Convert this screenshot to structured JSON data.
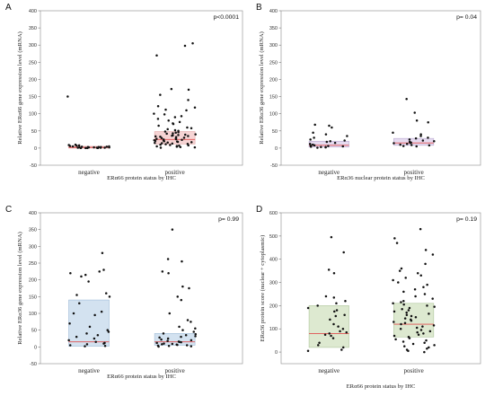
{
  "chart_data": [
    {
      "type": "scatter",
      "panel": "A",
      "ylabel": "Relative ERα66 gene expression level (mRNA)",
      "xlabel": "ERα66 protein status by IHC",
      "pvalue": "p<0.0001",
      "ylim": [
        -50,
        400
      ],
      "yticks": [
        -50,
        0,
        50,
        100,
        150,
        200,
        250,
        300,
        350,
        400
      ],
      "categories": [
        "negative",
        "positive"
      ],
      "box_fill": "#f6d4d4",
      "box_stroke": "#e3a5a5",
      "median_color": "#e05050",
      "boxes": [
        {
          "category": "negative",
          "q1": 0,
          "median": 2,
          "q3": 5
        },
        {
          "category": "positive",
          "q1": 12,
          "median": 25,
          "q3": 48
        }
      ],
      "series": [
        {
          "category": "negative",
          "values": [
            150,
            10,
            9,
            8,
            7,
            6,
            5,
            5,
            4,
            4,
            3,
            3,
            3,
            2,
            2,
            2,
            2,
            1,
            1,
            1,
            1,
            0,
            0,
            0,
            0
          ]
        },
        {
          "category": "positive",
          "values": [
            305,
            298,
            270,
            172,
            170,
            155,
            140,
            122,
            118,
            112,
            110,
            100,
            98,
            93,
            90,
            85,
            80,
            76,
            72,
            70,
            65,
            60,
            58,
            55,
            52,
            50,
            48,
            46,
            45,
            43,
            42,
            40,
            39,
            38,
            37,
            36,
            35,
            34,
            33,
            32,
            30,
            29,
            28,
            27,
            26,
            25,
            24,
            23,
            22,
            21,
            20,
            19,
            18,
            17,
            16,
            15,
            14,
            13,
            12,
            11,
            10,
            9,
            8,
            7,
            6,
            5,
            4,
            3,
            2,
            1
          ]
        }
      ]
    },
    {
      "type": "scatter",
      "panel": "B",
      "ylabel": "Relative ERα36 gene expression level (mRNA)",
      "xlabel": "ERα36 nuclear protein status by IHC",
      "pvalue": "p= 0.04",
      "ylim": [
        -50,
        400
      ],
      "yticks": [
        -50,
        0,
        50,
        100,
        150,
        200,
        250,
        300,
        350,
        400
      ],
      "categories": [
        "negative",
        "positive"
      ],
      "box_fill": "#e6dbf0",
      "box_stroke": "#b7a6cf",
      "median_color": "#e05050",
      "boxes": [
        {
          "category": "negative",
          "q1": 3,
          "median": 8,
          "q3": 20
        },
        {
          "category": "positive",
          "q1": 8,
          "median": 15,
          "q3": 28
        }
      ],
      "series": [
        {
          "category": "negative",
          "values": [
            68,
            65,
            60,
            45,
            40,
            35,
            30,
            25,
            22,
            20,
            18,
            15,
            12,
            10,
            8,
            7,
            6,
            5,
            4,
            3,
            3,
            2,
            1
          ]
        },
        {
          "category": "positive",
          "values": [
            143,
            103,
            80,
            75,
            45,
            40,
            35,
            30,
            28,
            25,
            22,
            20,
            18,
            16,
            15,
            14,
            12,
            10,
            9,
            8,
            6,
            5
          ]
        }
      ]
    },
    {
      "type": "scatter",
      "panel": "C",
      "ylabel": "Relative ERα36 gene expression level (mRNA)",
      "xlabel": "ERα66 protein status by IHC",
      "pvalue": "p= 0.99",
      "ylim": [
        -50,
        400
      ],
      "yticks": [
        -50,
        0,
        50,
        100,
        150,
        200,
        250,
        300,
        350,
        400
      ],
      "categories": [
        "negative",
        "positive"
      ],
      "box_fill": "#d3e2f0",
      "box_stroke": "#9fbcd8",
      "median_color": "#e05050",
      "boxes": [
        {
          "category": "negative",
          "q1": 2,
          "median": 15,
          "q3": 140
        },
        {
          "category": "positive",
          "q1": 5,
          "median": 15,
          "q3": 40
        }
      ],
      "series": [
        {
          "category": "negative",
          "values": [
            280,
            230,
            225,
            220,
            215,
            210,
            195,
            160,
            155,
            150,
            130,
            105,
            100,
            95,
            70,
            60,
            50,
            45,
            40,
            35,
            30,
            25,
            20,
            15,
            12,
            10,
            8,
            5,
            3,
            2
          ]
        },
        {
          "category": "positive",
          "values": [
            350,
            262,
            255,
            225,
            220,
            180,
            175,
            150,
            140,
            100,
            80,
            75,
            60,
            55,
            50,
            45,
            40,
            38,
            35,
            32,
            30,
            28,
            25,
            22,
            20,
            18,
            16,
            15,
            14,
            12,
            10,
            9,
            8,
            7,
            6,
            5,
            4,
            3,
            2,
            1
          ]
        }
      ]
    },
    {
      "type": "scatter",
      "panel": "D",
      "ylabel": "ERα36 protein score (nuclear + cytoplasmic)",
      "xlabel": "ERα66 protein status by IHC",
      "pvalue": "p= 0.19",
      "ylim": [
        -50,
        600
      ],
      "yticks": [
        0,
        100,
        200,
        300,
        400,
        500,
        600
      ],
      "categories": [
        "negative",
        "positive"
      ],
      "box_fill": "#dde9d0",
      "box_stroke": "#aec59a",
      "median_color": "#e05050",
      "boxes": [
        {
          "category": "negative",
          "q1": 20,
          "median": 80,
          "q3": 200
        },
        {
          "category": "positive",
          "q1": 65,
          "median": 120,
          "q3": 210
        }
      ],
      "series": [
        {
          "category": "negative",
          "values": [
            495,
            430,
            355,
            340,
            240,
            235,
            220,
            210,
            200,
            190,
            180,
            175,
            160,
            155,
            140,
            120,
            110,
            100,
            90,
            85,
            80,
            75,
            70,
            60,
            40,
            30,
            20,
            10,
            5
          ]
        },
        {
          "category": "positive",
          "values": [
            530,
            490,
            470,
            440,
            420,
            380,
            360,
            350,
            340,
            330,
            320,
            310,
            300,
            290,
            280,
            270,
            260,
            250,
            240,
            230,
            220,
            215,
            210,
            205,
            200,
            195,
            190,
            185,
            180,
            175,
            170,
            165,
            160,
            155,
            150,
            145,
            140,
            135,
            130,
            125,
            120,
            115,
            110,
            105,
            100,
            95,
            90,
            85,
            80,
            75,
            70,
            65,
            60,
            55,
            50,
            45,
            40,
            35,
            30,
            25,
            20,
            15,
            10,
            5,
            0
          ]
        }
      ]
    }
  ]
}
